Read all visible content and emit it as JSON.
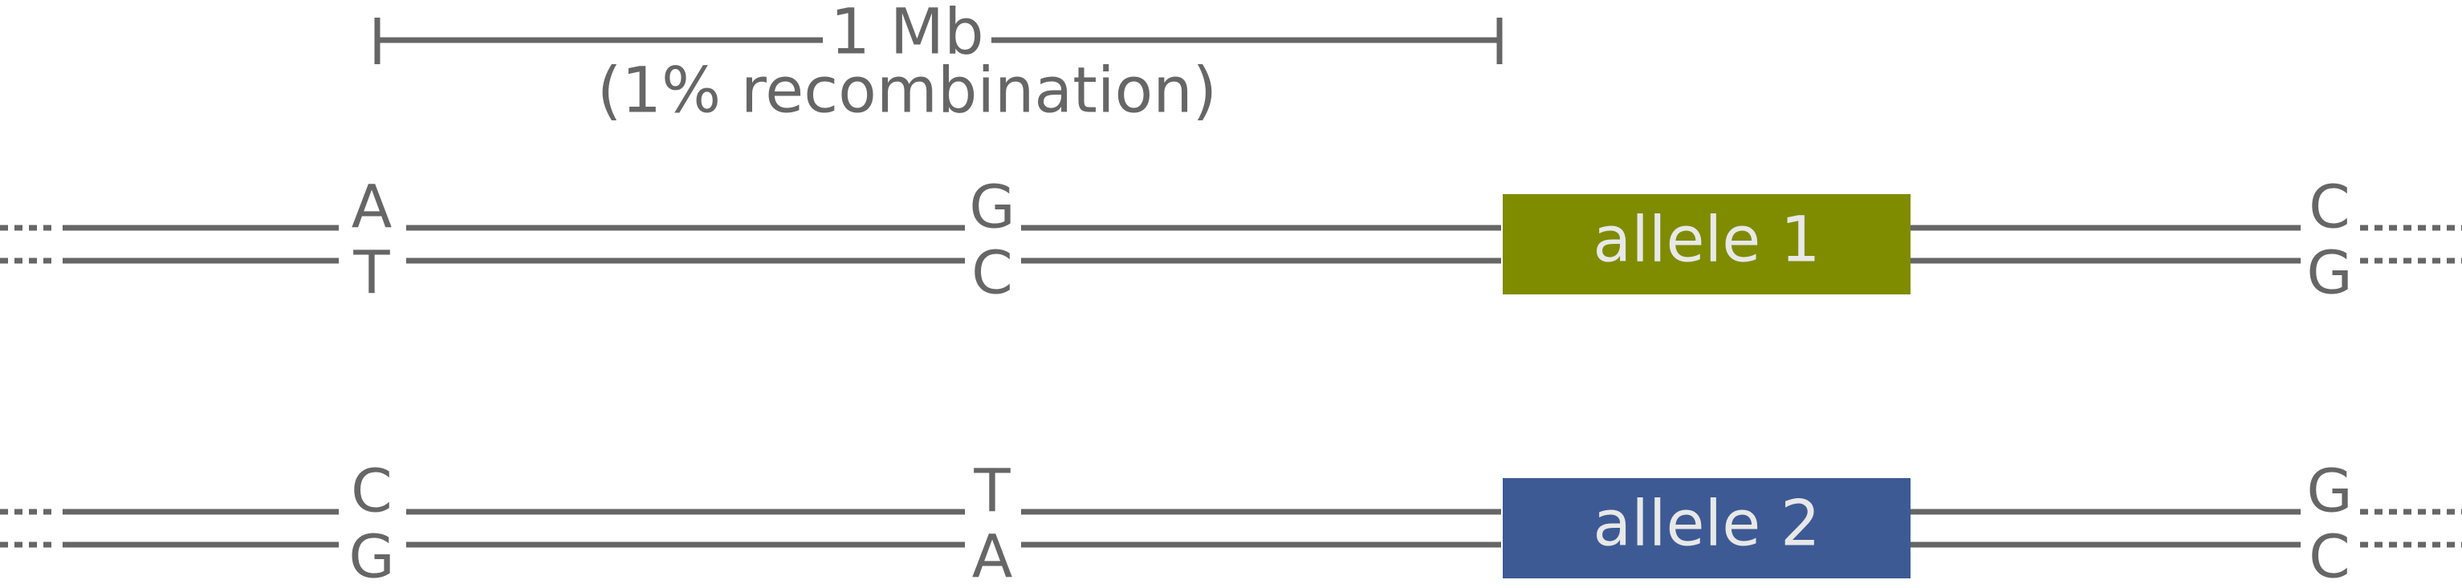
{
  "scale": {
    "label": "1 Mb",
    "sublabel": "(1% recombination)"
  },
  "chromosome_1": {
    "top_bases": [
      "A",
      "G",
      "C"
    ],
    "bottom_bases": [
      "T",
      "C",
      "G"
    ],
    "allele_label": "allele 1",
    "allele_color": "#7f8c00"
  },
  "chromosome_2": {
    "top_bases": [
      "C",
      "T",
      "G"
    ],
    "bottom_bases": [
      "G",
      "A",
      "C"
    ],
    "allele_label": "allele 2",
    "allele_color": "#3d5a94"
  },
  "line_color": "#666666"
}
